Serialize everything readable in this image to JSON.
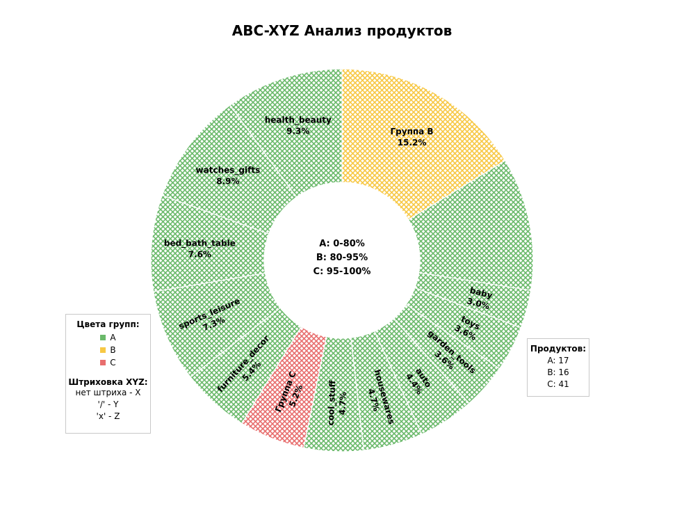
{
  "title": "ABC-XYZ Анализ продуктов",
  "center": {
    "line1": "A: 0-80%",
    "line2": "B: 80-95%",
    "line3": "C: 95-100%"
  },
  "colors": {
    "A": "#6ab96a",
    "B": "#f7c844",
    "C": "#e86e6e"
  },
  "legend_groups": {
    "title": "Цвета групп:",
    "items": [
      {
        "label": "A",
        "color": "#6ab96a"
      },
      {
        "label": "B",
        "color": "#f7c844"
      },
      {
        "label": "C",
        "color": "#e86e6e"
      }
    ],
    "hatch_title": "Штриховка XYZ:",
    "hatch_lines": [
      "нет штриха - X",
      "'/' - Y",
      "'x' - Z"
    ]
  },
  "legend_counts": {
    "title": "Продуктов:",
    "lines": [
      "A: 17",
      "B: 16",
      "C: 41"
    ]
  },
  "chart_data": {
    "type": "pie",
    "style": "donut",
    "title": "ABC-XYZ Анализ продуктов",
    "start": "12 o'clock, clockwise",
    "slices": [
      {
        "label": "Группа B",
        "value": 15.2,
        "value_label": "15.2%",
        "group": "B",
        "hatch": "x"
      },
      {
        "label": "",
        "value": 10.5,
        "value_label": "",
        "group": "A",
        "hatch": "x"
      },
      {
        "label": "baby",
        "value": 3.0,
        "value_label": "3.0%",
        "group": "A",
        "hatch": "x"
      },
      {
        "label": "toys",
        "value": 3.6,
        "value_label": "3.6%",
        "group": "A",
        "hatch": "x"
      },
      {
        "label": "garden_tools",
        "value": 3.6,
        "value_label": "3.6%",
        "group": "A",
        "hatch": "x"
      },
      {
        "label": "auto",
        "value": 4.4,
        "value_label": "4.4%",
        "group": "A",
        "hatch": "x"
      },
      {
        "label": "housewares",
        "value": 4.7,
        "value_label": "4.7%",
        "group": "A",
        "hatch": "x"
      },
      {
        "label": "cool_stuff",
        "value": 4.7,
        "value_label": "4.7%",
        "group": "A",
        "hatch": "x"
      },
      {
        "label": "Группа C",
        "value": 5.2,
        "value_label": "5.2%",
        "group": "C",
        "hatch": "x"
      },
      {
        "label": "furniture_decor",
        "value": 5.4,
        "value_label": "5.4%",
        "group": "A",
        "hatch": "x"
      },
      {
        "label": "sports_leisure",
        "value": 7.3,
        "value_label": "7.3%",
        "group": "A",
        "hatch": "x"
      },
      {
        "label": "bed_bath_table",
        "value": 7.6,
        "value_label": "7.6%",
        "group": "A",
        "hatch": "x"
      },
      {
        "label": "watches_gifts",
        "value": 8.9,
        "value_label": "8.9%",
        "group": "A",
        "hatch": "x"
      },
      {
        "label": "health_beauty",
        "value": 9.3,
        "value_label": "9.3%",
        "group": "A",
        "hatch": "x"
      }
    ]
  }
}
